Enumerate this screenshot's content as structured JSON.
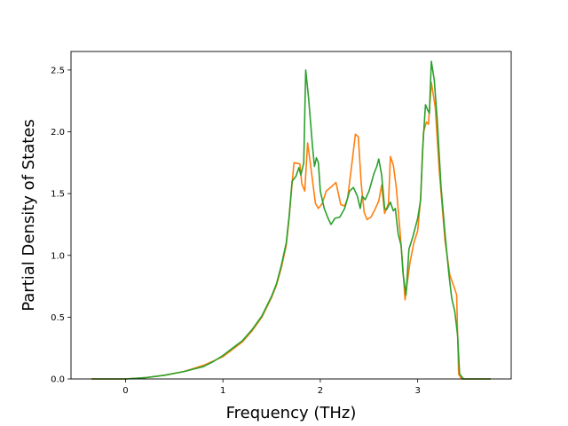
{
  "chart_data": {
    "type": "line",
    "title": "",
    "xlabel": "Frequency (THz)",
    "ylabel": "Partial Density of States",
    "xlim": [
      -0.56,
      3.96
    ],
    "ylim": [
      0,
      2.65
    ],
    "xticks": [
      0,
      1,
      2,
      3
    ],
    "xtick_labels": [
      "0",
      "1",
      "2",
      "3"
    ],
    "yticks": [
      0.0,
      0.5,
      1.0,
      1.5,
      2.0,
      2.5
    ],
    "ytick_labels": [
      "0.0",
      "0.5",
      "1.0",
      "1.5",
      "2.0",
      "2.5"
    ],
    "grid": false,
    "legend": "none",
    "series": [
      {
        "color": "#ff7f0e",
        "points": [
          [
            -0.35,
            0.0
          ],
          [
            0.0,
            0.0
          ],
          [
            0.2,
            0.01
          ],
          [
            0.4,
            0.03
          ],
          [
            0.6,
            0.06
          ],
          [
            0.8,
            0.11
          ],
          [
            1.0,
            0.18
          ],
          [
            1.1,
            0.24
          ],
          [
            1.2,
            0.3
          ],
          [
            1.3,
            0.39
          ],
          [
            1.4,
            0.5
          ],
          [
            1.5,
            0.66
          ],
          [
            1.55,
            0.76
          ],
          [
            1.6,
            0.9
          ],
          [
            1.65,
            1.08
          ],
          [
            1.68,
            1.3
          ],
          [
            1.71,
            1.58
          ],
          [
            1.73,
            1.75
          ],
          [
            1.79,
            1.74
          ],
          [
            1.81,
            1.58
          ],
          [
            1.84,
            1.52
          ],
          [
            1.86,
            1.78
          ],
          [
            1.87,
            1.91
          ],
          [
            1.9,
            1.73
          ],
          [
            1.95,
            1.42
          ],
          [
            1.98,
            1.38
          ],
          [
            2.02,
            1.42
          ],
          [
            2.06,
            1.52
          ],
          [
            2.12,
            1.56
          ],
          [
            2.16,
            1.59
          ],
          [
            2.18,
            1.52
          ],
          [
            2.21,
            1.41
          ],
          [
            2.25,
            1.4
          ],
          [
            2.28,
            1.46
          ],
          [
            2.33,
            1.78
          ],
          [
            2.36,
            1.98
          ],
          [
            2.39,
            1.96
          ],
          [
            2.42,
            1.58
          ],
          [
            2.45,
            1.35
          ],
          [
            2.48,
            1.29
          ],
          [
            2.52,
            1.31
          ],
          [
            2.56,
            1.37
          ],
          [
            2.6,
            1.44
          ],
          [
            2.63,
            1.57
          ],
          [
            2.66,
            1.34
          ],
          [
            2.7,
            1.42
          ],
          [
            2.72,
            1.8
          ],
          [
            2.75,
            1.73
          ],
          [
            2.78,
            1.55
          ],
          [
            2.82,
            1.18
          ],
          [
            2.85,
            0.87
          ],
          [
            2.87,
            0.64
          ],
          [
            2.92,
            0.94
          ],
          [
            2.96,
            1.1
          ],
          [
            3.0,
            1.2
          ],
          [
            3.03,
            1.46
          ],
          [
            3.06,
            2.0
          ],
          [
            3.09,
            2.08
          ],
          [
            3.11,
            2.06
          ],
          [
            3.14,
            2.4
          ],
          [
            3.18,
            2.2
          ],
          [
            3.22,
            1.7
          ],
          [
            3.28,
            1.12
          ],
          [
            3.33,
            0.84
          ],
          [
            3.38,
            0.73
          ],
          [
            3.4,
            0.68
          ],
          [
            3.42,
            0.04
          ],
          [
            3.45,
            0.0
          ],
          [
            3.6,
            0.0
          ],
          [
            3.75,
            0.0
          ]
        ]
      },
      {
        "color": "#2ca02c",
        "points": [
          [
            -0.35,
            0.0
          ],
          [
            0.0,
            0.0
          ],
          [
            0.2,
            0.01
          ],
          [
            0.4,
            0.03
          ],
          [
            0.6,
            0.06
          ],
          [
            0.8,
            0.1
          ],
          [
            0.9,
            0.14
          ],
          [
            1.0,
            0.19
          ],
          [
            1.1,
            0.25
          ],
          [
            1.2,
            0.31
          ],
          [
            1.3,
            0.4
          ],
          [
            1.4,
            0.51
          ],
          [
            1.5,
            0.67
          ],
          [
            1.55,
            0.77
          ],
          [
            1.6,
            0.92
          ],
          [
            1.65,
            1.1
          ],
          [
            1.68,
            1.32
          ],
          [
            1.71,
            1.6
          ],
          [
            1.75,
            1.64
          ],
          [
            1.78,
            1.71
          ],
          [
            1.8,
            1.65
          ],
          [
            1.83,
            1.75
          ],
          [
            1.85,
            2.5
          ],
          [
            1.88,
            2.27
          ],
          [
            1.92,
            1.88
          ],
          [
            1.94,
            1.72
          ],
          [
            1.96,
            1.79
          ],
          [
            1.98,
            1.75
          ],
          [
            2.0,
            1.52
          ],
          [
            2.04,
            1.38
          ],
          [
            2.08,
            1.3
          ],
          [
            2.11,
            1.25
          ],
          [
            2.15,
            1.3
          ],
          [
            2.2,
            1.31
          ],
          [
            2.25,
            1.38
          ],
          [
            2.3,
            1.52
          ],
          [
            2.34,
            1.55
          ],
          [
            2.38,
            1.48
          ],
          [
            2.41,
            1.38
          ],
          [
            2.43,
            1.48
          ],
          [
            2.46,
            1.45
          ],
          [
            2.5,
            1.52
          ],
          [
            2.55,
            1.66
          ],
          [
            2.58,
            1.72
          ],
          [
            2.6,
            1.78
          ],
          [
            2.63,
            1.65
          ],
          [
            2.66,
            1.38
          ],
          [
            2.68,
            1.37
          ],
          [
            2.72,
            1.43
          ],
          [
            2.75,
            1.36
          ],
          [
            2.77,
            1.38
          ],
          [
            2.8,
            1.17
          ],
          [
            2.83,
            1.08
          ],
          [
            2.85,
            0.85
          ],
          [
            2.88,
            0.68
          ],
          [
            2.91,
            1.05
          ],
          [
            2.95,
            1.15
          ],
          [
            3.0,
            1.3
          ],
          [
            3.03,
            1.45
          ],
          [
            3.05,
            1.85
          ],
          [
            3.08,
            2.22
          ],
          [
            3.1,
            2.18
          ],
          [
            3.12,
            2.15
          ],
          [
            3.14,
            2.57
          ],
          [
            3.17,
            2.42
          ],
          [
            3.2,
            2.1
          ],
          [
            3.24,
            1.55
          ],
          [
            3.28,
            1.18
          ],
          [
            3.32,
            0.85
          ],
          [
            3.35,
            0.65
          ],
          [
            3.38,
            0.55
          ],
          [
            3.41,
            0.35
          ],
          [
            3.43,
            0.04
          ],
          [
            3.47,
            0.0
          ],
          [
            3.6,
            0.0
          ],
          [
            3.75,
            0.0
          ]
        ]
      }
    ]
  }
}
